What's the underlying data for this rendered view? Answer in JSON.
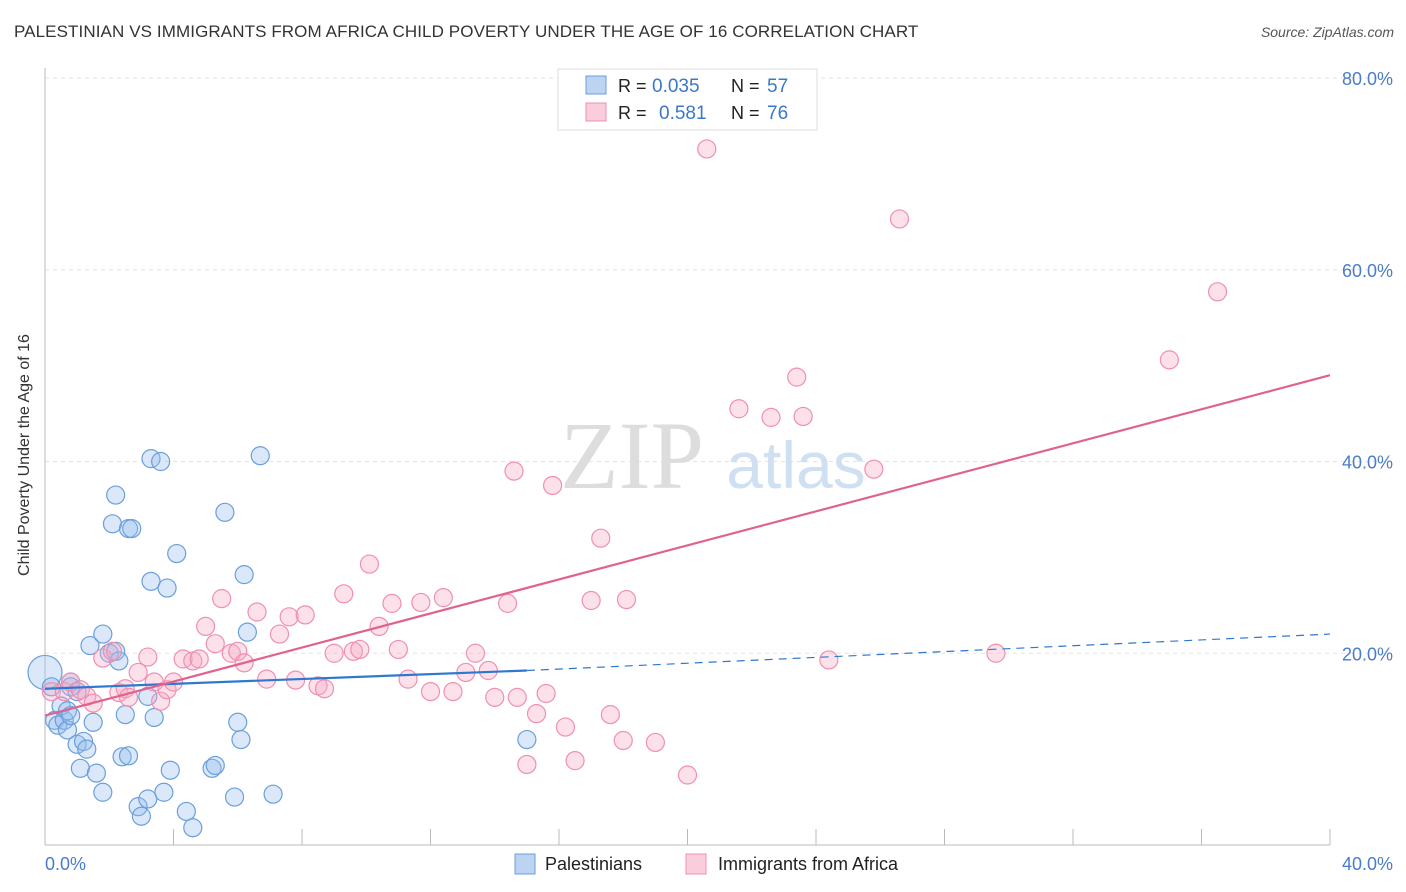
{
  "title": "PALESTINIAN VS IMMIGRANTS FROM AFRICA CHILD POVERTY UNDER THE AGE OF 16 CORRELATION CHART",
  "source": "Source: ZipAtlas.com",
  "watermark": {
    "zip": "ZIP",
    "atlas": "atlas"
  },
  "colors": {
    "blue": "#6a9fdc",
    "pink": "#f08fb0",
    "blue_line": "#2f78d0",
    "pink_line": "#e0628e",
    "tick_text": "#4a7cc7"
  },
  "legend": {
    "rows": [
      {
        "series": "Palestinians",
        "r_label": "R = ",
        "r_value": "0.035",
        "n_label": "N = ",
        "n_value": "57"
      },
      {
        "series": "Immigrants from Africa",
        "r_label": "R = ",
        "r_value": "0.581",
        "n_label": "N = ",
        "n_value": "76"
      }
    ]
  },
  "chart_data": {
    "type": "scatter",
    "xlabel": "",
    "ylabel": "Child Poverty Under the Age of 16",
    "xlim": [
      0,
      40
    ],
    "ylim": [
      0,
      80
    ],
    "x_tick_labels": [
      "0.0%",
      "40.0%"
    ],
    "y_tick_labels": [
      "20.0%",
      "40.0%",
      "60.0%",
      "80.0%"
    ],
    "y_ticks": [
      20,
      40,
      60,
      80
    ],
    "grid": true,
    "series": [
      {
        "name": "Palestinians",
        "color": "#6a9fdc",
        "trend": {
          "x0": 0,
          "y0": 16.3,
          "x1": 15,
          "y1": 18.2,
          "dash_to_x": 40,
          "dash_to_y": 22.0
        },
        "points": [
          [
            0.0,
            18.0
          ],
          [
            0.2,
            16.5
          ],
          [
            0.3,
            13.0
          ],
          [
            0.4,
            12.5
          ],
          [
            0.5,
            14.5
          ],
          [
            0.6,
            13.0
          ],
          [
            0.7,
            12.0
          ],
          [
            0.7,
            14.0
          ],
          [
            0.8,
            17.0
          ],
          [
            0.8,
            16.5
          ],
          [
            0.8,
            13.5
          ],
          [
            1.0,
            16.0
          ],
          [
            1.0,
            10.5
          ],
          [
            1.1,
            8.0
          ],
          [
            1.2,
            10.8
          ],
          [
            1.3,
            10.0
          ],
          [
            1.4,
            20.8
          ],
          [
            1.5,
            12.8
          ],
          [
            1.6,
            7.5
          ],
          [
            1.8,
            22.0
          ],
          [
            1.8,
            5.5
          ],
          [
            2.0,
            20.0
          ],
          [
            2.1,
            33.5
          ],
          [
            2.2,
            36.5
          ],
          [
            2.2,
            20.2
          ],
          [
            2.3,
            19.2
          ],
          [
            2.4,
            9.2
          ],
          [
            2.5,
            13.6
          ],
          [
            2.6,
            9.3
          ],
          [
            2.6,
            33.0
          ],
          [
            2.7,
            33.0
          ],
          [
            2.9,
            4.0
          ],
          [
            3.0,
            3.0
          ],
          [
            3.2,
            4.8
          ],
          [
            3.2,
            15.5
          ],
          [
            3.3,
            40.3
          ],
          [
            3.3,
            27.5
          ],
          [
            3.4,
            13.3
          ],
          [
            3.6,
            40.0
          ],
          [
            3.7,
            5.5
          ],
          [
            3.8,
            26.8
          ],
          [
            3.9,
            7.8
          ],
          [
            4.1,
            30.4
          ],
          [
            4.4,
            3.5
          ],
          [
            4.6,
            1.8
          ],
          [
            5.2,
            8.0
          ],
          [
            5.3,
            8.3
          ],
          [
            5.6,
            34.7
          ],
          [
            5.9,
            5.0
          ],
          [
            6.0,
            12.8
          ],
          [
            6.1,
            11.0
          ],
          [
            6.2,
            28.2
          ],
          [
            6.3,
            22.2
          ],
          [
            6.7,
            40.6
          ],
          [
            7.1,
            5.3
          ],
          [
            15.0,
            11.0
          ]
        ]
      },
      {
        "name": "Immigrants from Africa",
        "color": "#f08fb0",
        "trend": {
          "x0": 0,
          "y0": 13.5,
          "x1": 40,
          "y1": 49.0
        },
        "points": [
          [
            0.2,
            16.0
          ],
          [
            0.6,
            16.0
          ],
          [
            0.8,
            17.0
          ],
          [
            1.1,
            16.2
          ],
          [
            1.3,
            15.5
          ],
          [
            1.5,
            14.8
          ],
          [
            1.8,
            19.5
          ],
          [
            2.1,
            20.2
          ],
          [
            2.3,
            15.9
          ],
          [
            2.5,
            16.3
          ],
          [
            2.6,
            15.4
          ],
          [
            2.9,
            18.0
          ],
          [
            3.2,
            19.6
          ],
          [
            3.4,
            17.0
          ],
          [
            3.6,
            15.0
          ],
          [
            3.8,
            16.2
          ],
          [
            4.0,
            17.0
          ],
          [
            4.3,
            19.4
          ],
          [
            4.6,
            19.2
          ],
          [
            4.8,
            19.4
          ],
          [
            5.0,
            22.8
          ],
          [
            5.3,
            21.0
          ],
          [
            5.5,
            25.7
          ],
          [
            5.8,
            20.0
          ],
          [
            6.0,
            20.2
          ],
          [
            6.2,
            19.0
          ],
          [
            6.6,
            24.3
          ],
          [
            6.9,
            17.3
          ],
          [
            7.3,
            22.0
          ],
          [
            7.6,
            23.8
          ],
          [
            7.8,
            17.2
          ],
          [
            8.1,
            24.0
          ],
          [
            8.5,
            16.6
          ],
          [
            8.7,
            16.3
          ],
          [
            9.0,
            20.0
          ],
          [
            9.3,
            26.2
          ],
          [
            9.6,
            20.2
          ],
          [
            9.8,
            20.4
          ],
          [
            10.1,
            29.3
          ],
          [
            10.4,
            22.8
          ],
          [
            10.8,
            25.2
          ],
          [
            11.0,
            20.4
          ],
          [
            11.3,
            17.3
          ],
          [
            11.7,
            25.3
          ],
          [
            12.0,
            16.0
          ],
          [
            12.4,
            25.8
          ],
          [
            12.7,
            16.0
          ],
          [
            13.1,
            18.0
          ],
          [
            13.4,
            20.0
          ],
          [
            13.8,
            18.2
          ],
          [
            14.0,
            15.4
          ],
          [
            14.4,
            25.2
          ],
          [
            14.7,
            15.4
          ],
          [
            14.6,
            39.0
          ],
          [
            15.0,
            8.4
          ],
          [
            15.3,
            13.7
          ],
          [
            15.6,
            15.8
          ],
          [
            15.8,
            37.5
          ],
          [
            16.2,
            12.3
          ],
          [
            16.5,
            8.8
          ],
          [
            17.0,
            25.5
          ],
          [
            17.3,
            32.0
          ],
          [
            17.6,
            13.6
          ],
          [
            18.0,
            10.9
          ],
          [
            18.1,
            25.6
          ],
          [
            19.0,
            10.7
          ],
          [
            20.0,
            7.3
          ],
          [
            20.6,
            72.6
          ],
          [
            21.6,
            45.5
          ],
          [
            22.6,
            44.6
          ],
          [
            23.4,
            48.8
          ],
          [
            23.6,
            44.7
          ],
          [
            24.4,
            19.3
          ],
          [
            25.8,
            39.2
          ],
          [
            26.6,
            65.3
          ],
          [
            29.6,
            20.0
          ],
          [
            35.0,
            50.6
          ],
          [
            36.5,
            57.7
          ]
        ]
      }
    ]
  }
}
